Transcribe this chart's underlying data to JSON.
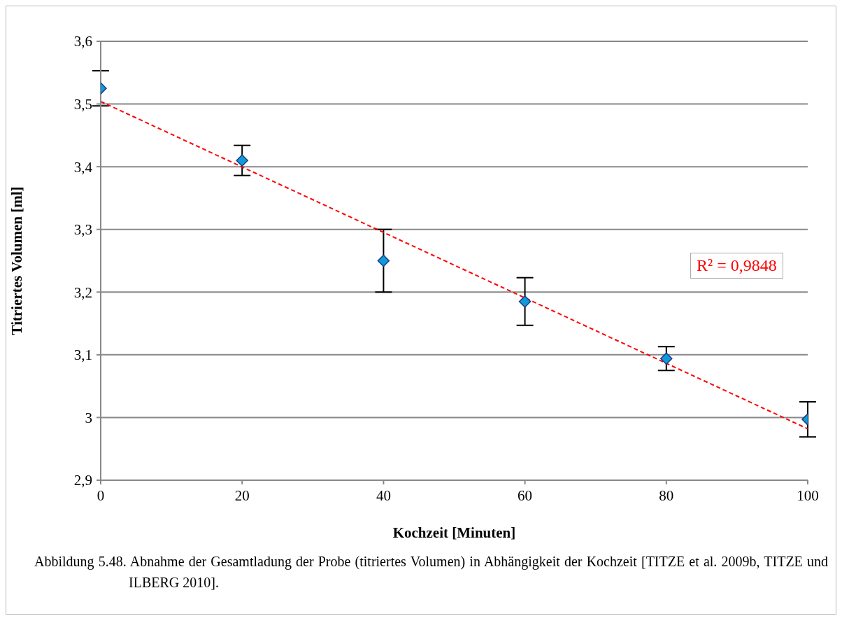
{
  "chart_data": {
    "type": "scatter",
    "xlabel": "Kochzeit [Minuten]",
    "ylabel": "Titriertes Volumen [ml]",
    "xlim": [
      0,
      100
    ],
    "xticks": [
      0,
      20,
      40,
      60,
      80,
      100
    ],
    "ylim": [
      2.9,
      3.6
    ],
    "yticks": [
      {
        "value": 2.9,
        "label": "2,9"
      },
      3,
      {
        "value": 3.1,
        "label": "3,1"
      },
      {
        "value": 3.2,
        "label": "3,2"
      },
      {
        "value": 3.3,
        "label": "3,3"
      },
      {
        "value": 3.4,
        "label": "3,4"
      },
      {
        "value": 3.5,
        "label": "3,5"
      },
      {
        "value": 3.6,
        "label": "3,6"
      }
    ],
    "grid": "y",
    "series": [
      {
        "type": "scatter",
        "color": "#109ad8",
        "marker": "diamond",
        "x": [
          0,
          20,
          40,
          60,
          80,
          100
        ],
        "values": [
          3.525,
          3.41,
          3.25,
          3.185,
          3.094,
          2.997
        ],
        "errors": [
          0.028,
          0.024,
          0.05,
          0.038,
          0.019,
          0.028
        ]
      },
      {
        "type": "line",
        "color": "#ff0000",
        "marker": "none",
        "line_style": "dashed",
        "x": [
          0,
          100
        ],
        "values": [
          3.504,
          2.982
        ]
      }
    ],
    "annotations": [
      "R² = 0,9848",
      "Abbildung 5.48.  Abnahme der Gesamtladung der Probe (titriertes Volumen) in Abhängigkeit der Kochzeit [TITZE et al. 2009b, TITZE und ILBERG 2010]."
    ]
  }
}
